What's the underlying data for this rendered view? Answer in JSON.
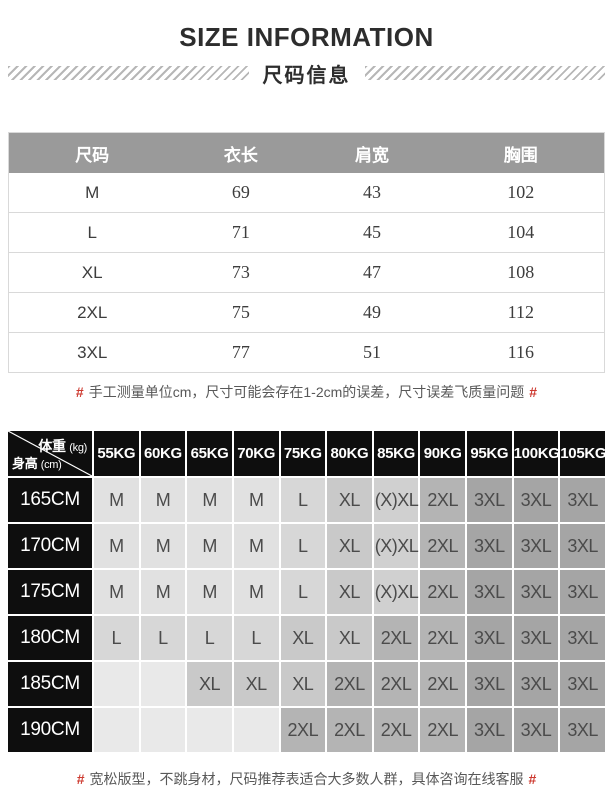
{
  "header": {
    "title_en": "SIZE INFORMATION",
    "title_zh": "尺码信息"
  },
  "size_table": {
    "columns": [
      "尺码",
      "衣长",
      "肩宽",
      "胸围"
    ],
    "rows": [
      [
        "M",
        "69",
        "43",
        "102"
      ],
      [
        "L",
        "71",
        "45",
        "104"
      ],
      [
        "XL",
        "73",
        "47",
        "108"
      ],
      [
        "2XL",
        "75",
        "49",
        "112"
      ],
      [
        "3XL",
        "77",
        "51",
        "116"
      ]
    ],
    "note": {
      "hash": "#",
      "text": "手工测量单位cm，尺寸可能会存在1-2cm的误差，尺寸误差飞质量问题"
    }
  },
  "recommend_table": {
    "corner": {
      "top": "体重",
      "top_unit": "(kg)",
      "bottom": "身高",
      "bottom_unit": "(cm)"
    },
    "weight_columns": [
      "55KG",
      "60KG",
      "65KG",
      "70KG",
      "75KG",
      "80KG",
      "85KG",
      "90KG",
      "95KG",
      "100KG",
      "105KG"
    ],
    "rows": [
      {
        "height": "165CM",
        "cells": [
          "M",
          "M",
          "M",
          "M",
          "L",
          "XL",
          "(X)XL",
          "2XL",
          "3XL",
          "3XL",
          "3XL"
        ]
      },
      {
        "height": "170CM",
        "cells": [
          "M",
          "M",
          "M",
          "M",
          "L",
          "XL",
          "(X)XL",
          "2XL",
          "3XL",
          "3XL",
          "3XL"
        ]
      },
      {
        "height": "175CM",
        "cells": [
          "M",
          "M",
          "M",
          "M",
          "L",
          "XL",
          "(X)XL",
          "2XL",
          "3XL",
          "3XL",
          "3XL"
        ]
      },
      {
        "height": "180CM",
        "cells": [
          "L",
          "L",
          "L",
          "L",
          "XL",
          "XL",
          "2XL",
          "2XL",
          "3XL",
          "3XL",
          "3XL"
        ]
      },
      {
        "height": "185CM",
        "cells": [
          "",
          "",
          "XL",
          "XL",
          "XL",
          "2XL",
          "2XL",
          "2XL",
          "3XL",
          "3XL",
          "3XL"
        ]
      },
      {
        "height": "190CM",
        "cells": [
          "",
          "",
          "",
          "",
          "2XL",
          "2XL",
          "2XL",
          "2XL",
          "3XL",
          "3XL",
          "3XL"
        ]
      }
    ],
    "note": {
      "hash": "#",
      "text": "宽松版型，不跳身材，尺码推荐表适合大多数人群，具体咨询在线客服"
    }
  },
  "colors": {
    "accent_red": "#cd3a30",
    "size_header_gray": "#9a9a9a",
    "matrix_black": "#0e0e0e",
    "cell_shades": {
      "": "#e9e9e9",
      "M": "#e1e1e1",
      "L": "#d7d7d7",
      "XL": "#c9c9c9",
      "(X)XL": "#d0d0d0",
      "2XL": "#b4b4b4",
      "3XL": "#a5a5a5"
    }
  }
}
